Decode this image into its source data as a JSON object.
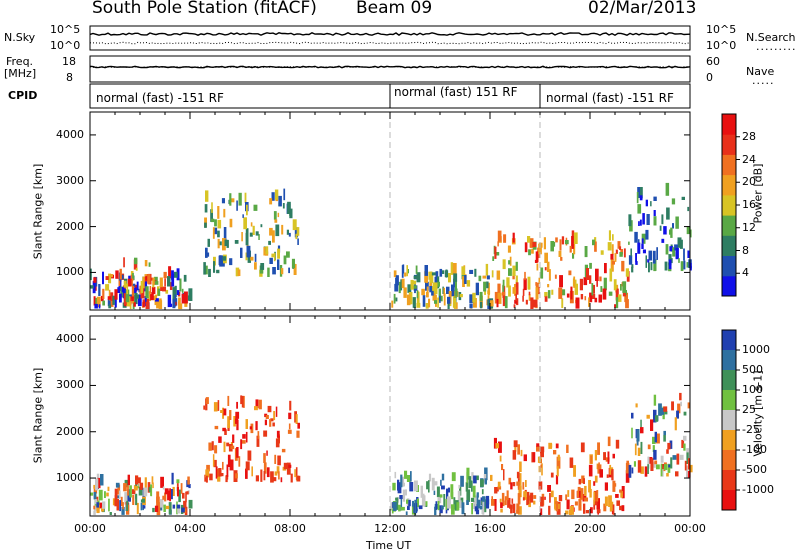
{
  "header": {
    "station": "South Pole Station (fitACF)",
    "beam": "Beam 09",
    "date": "02/Mar/2013"
  },
  "side_labels": {
    "nsky": "N.Sky",
    "freq_line1": "Freq.",
    "freq_line2": "[MHz]",
    "cpid": "CPID",
    "nsearch": "N.Search",
    "nave": "Nave",
    "nsky_high": "10^5",
    "nsky_low": "10^0",
    "nsearch_high": "10^5",
    "nsearch_low": "10^0",
    "freq_high": "18",
    "freq_low": "8",
    "nave_high": "60",
    "nave_low": "0"
  },
  "cpid_segments": [
    {
      "label": "normal (fast) -151 RF",
      "start_hour": 0
    },
    {
      "label": "normal (fast) 151 RF",
      "start_hour": 12
    },
    {
      "label": "normal (fast) -151 RF",
      "start_hour": 18
    }
  ],
  "chart_data": [
    {
      "type": "heatmap",
      "name": "power",
      "ylabel": "Slant Range [km]",
      "xlabel": "",
      "ylim": [
        180,
        4500
      ],
      "xlim_hours": [
        0,
        24
      ],
      "yticks": [
        "1000",
        "2000",
        "3000",
        "4000"
      ],
      "colorbar": {
        "label": "Power [dB]",
        "ticks": [
          "4",
          "8",
          "12",
          "16",
          "20",
          "24",
          "28"
        ],
        "range": [
          0,
          32
        ],
        "colors": [
          "#1010e8",
          "#1f4fb0",
          "#2e7d62",
          "#59a845",
          "#d8c425",
          "#f0a020",
          "#f07020",
          "#e8301a",
          "#e81010"
        ]
      },
      "regions": [
        {
          "hours": [
            0.0,
            4.0
          ],
          "range_km": [
            200,
            900
          ],
          "level": "mixed"
        },
        {
          "hours": [
            1.3,
            2.5
          ],
          "range_km": [
            200,
            1200
          ],
          "level": "high"
        },
        {
          "hours": [
            4.5,
            8.3
          ],
          "range_km": [
            900,
            2600
          ],
          "level": "mid"
        },
        {
          "hours": [
            12.0,
            16.0
          ],
          "range_km": [
            200,
            1000
          ],
          "level": "mid"
        },
        {
          "hours": [
            16.0,
            21.5
          ],
          "range_km": [
            200,
            1700
          ],
          "level": "high"
        },
        {
          "hours": [
            21.5,
            24.0
          ],
          "range_km": [
            1000,
            2700
          ],
          "level": "low"
        }
      ]
    },
    {
      "type": "heatmap",
      "name": "velocity",
      "ylabel": "Slant Range [km]",
      "xlabel": "Time UT",
      "ylim": [
        180,
        4500
      ],
      "xlim_hours": [
        0,
        24
      ],
      "xticks": [
        "00:00",
        "04:00",
        "08:00",
        "12:00",
        "16:00",
        "20:00",
        "00:00"
      ],
      "yticks": [
        "1000",
        "2000",
        "3000",
        "4000"
      ],
      "colorbar": {
        "label": "Velocity [m s-1]",
        "ticks": [
          "1000",
          "500",
          "100",
          "25",
          "-25",
          "-100",
          "-500",
          "-1000"
        ],
        "colors": [
          "#2040b0",
          "#2e70a0",
          "#3f9058",
          "#70c040",
          "#c8c8c8",
          "#f0a020",
          "#f07020",
          "#e83818",
          "#e81010"
        ]
      },
      "regions": [
        {
          "hours": [
            0.0,
            4.0
          ],
          "range_km": [
            200,
            900
          ],
          "level": "mixed"
        },
        {
          "hours": [
            4.5,
            8.3
          ],
          "range_km": [
            900,
            2600
          ],
          "level": "negative"
        },
        {
          "hours": [
            12.0,
            16.0
          ],
          "range_km": [
            200,
            1000
          ],
          "level": "positive"
        },
        {
          "hours": [
            16.0,
            21.5
          ],
          "range_km": [
            200,
            1700
          ],
          "level": "negative"
        },
        {
          "hours": [
            21.5,
            24.0
          ],
          "range_km": [
            1000,
            2700
          ],
          "level": "mixed"
        }
      ]
    }
  ]
}
